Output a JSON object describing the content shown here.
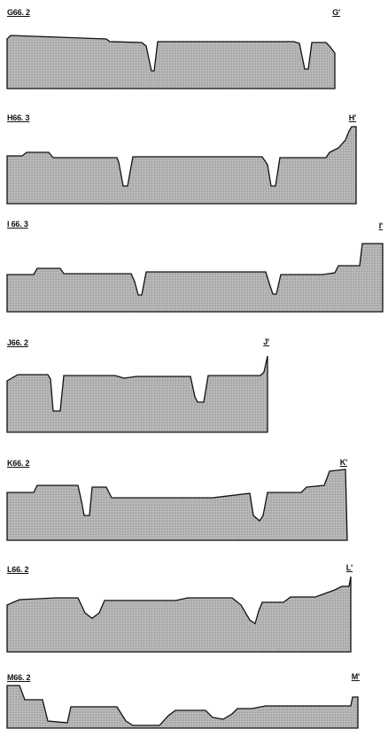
{
  "figure": {
    "colors": {
      "fill": "#b8b8b8",
      "outline": "#111111",
      "hatch": "#8e8e8e",
      "text": "#111111"
    },
    "profiles": [
      {
        "id": "G",
        "left_label": "G66. 2",
        "right_label": "G'"
      },
      {
        "id": "H",
        "left_label": "H66. 3",
        "right_label": "H'"
      },
      {
        "id": "I",
        "left_label": "I 66. 3",
        "right_label": "I'"
      },
      {
        "id": "J",
        "left_label": "J66. 2",
        "right_label": "J'"
      },
      {
        "id": "K",
        "left_label": "K66. 2",
        "right_label": "K'"
      },
      {
        "id": "L",
        "left_label": "L66. 2",
        "right_label": "L'"
      },
      {
        "id": "M",
        "left_label": "M66. 2",
        "right_label": "M'"
      }
    ]
  }
}
